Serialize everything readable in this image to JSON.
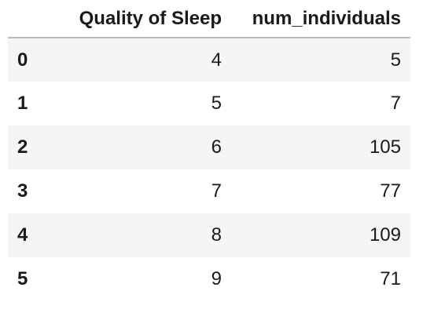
{
  "table": {
    "columns": [
      "",
      "Quality of Sleep",
      "num_individuals"
    ],
    "rows": [
      {
        "index": "0",
        "quality": "4",
        "num": "5"
      },
      {
        "index": "1",
        "quality": "5",
        "num": "7"
      },
      {
        "index": "2",
        "quality": "6",
        "num": "105"
      },
      {
        "index": "3",
        "quality": "7",
        "num": "77"
      },
      {
        "index": "4",
        "quality": "8",
        "num": "109"
      },
      {
        "index": "5",
        "quality": "9",
        "num": "71"
      }
    ]
  },
  "colors": {
    "striped_row": "#f5f5f5",
    "header_rule": "#b9b9b9"
  }
}
